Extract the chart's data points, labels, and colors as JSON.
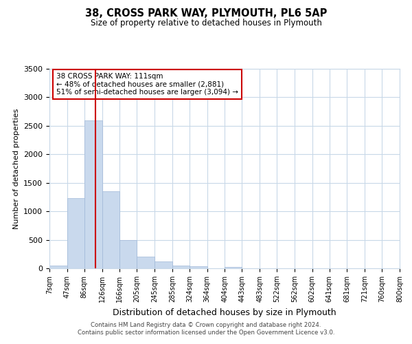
{
  "title": "38, CROSS PARK WAY, PLYMOUTH, PL6 5AP",
  "subtitle": "Size of property relative to detached houses in Plymouth",
  "xlabel": "Distribution of detached houses by size in Plymouth",
  "ylabel": "Number of detached properties",
  "bin_labels": [
    "7sqm",
    "47sqm",
    "86sqm",
    "126sqm",
    "166sqm",
    "205sqm",
    "245sqm",
    "285sqm",
    "324sqm",
    "364sqm",
    "404sqm",
    "443sqm",
    "483sqm",
    "522sqm",
    "562sqm",
    "602sqm",
    "641sqm",
    "681sqm",
    "721sqm",
    "760sqm",
    "800sqm"
  ],
  "bar_heights": [
    50,
    1230,
    2590,
    1350,
    500,
    200,
    115,
    50,
    35,
    0,
    30,
    0,
    0,
    0,
    0,
    0,
    0,
    0,
    0,
    0
  ],
  "bar_color": "#c9d9ed",
  "bar_edgecolor": "#a0b8d8",
  "box_color": "#cc0000",
  "ylim": [
    0,
    3500
  ],
  "footer1": "Contains HM Land Registry data © Crown copyright and database right 2024.",
  "footer2": "Contains public sector information licensed under the Open Government Licence v3.0.",
  "bin_edges": [
    7,
    47,
    86,
    126,
    166,
    205,
    245,
    285,
    324,
    364,
    404,
    443,
    483,
    522,
    562,
    602,
    641,
    681,
    721,
    760,
    800
  ],
  "property_sqm": 111,
  "annotation_line1": "38 CROSS PARK WAY: 111sqm",
  "annotation_line2": "← 48% of detached houses are smaller (2,881)",
  "annotation_line3": "51% of semi-detached houses are larger (3,094) →"
}
